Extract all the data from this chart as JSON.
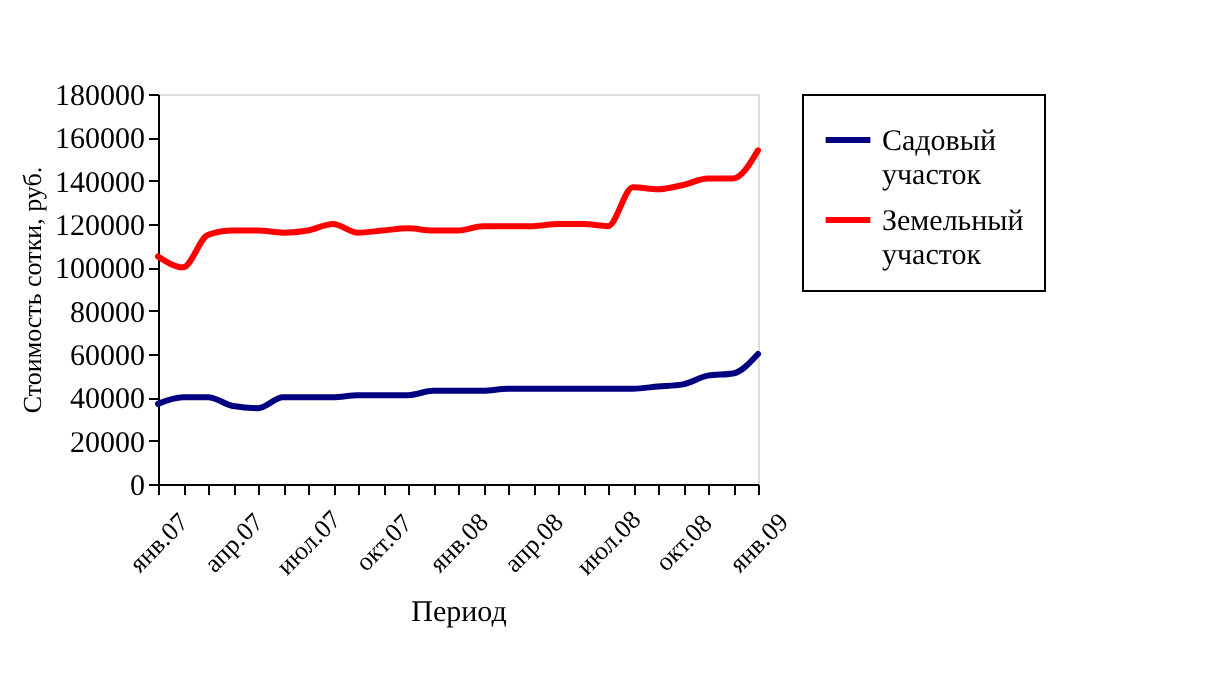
{
  "chart_data": {
    "type": "line",
    "xlabel": "Период",
    "ylabel": "Стоимость сотки, руб.",
    "categories": [
      "янв.07",
      null,
      null,
      "апр.07",
      null,
      null,
      "июл.07",
      null,
      null,
      "окт.07",
      null,
      null,
      "янв.08",
      null,
      null,
      "апр.08",
      null,
      null,
      "июл.08",
      null,
      null,
      "окт.08",
      null,
      null,
      "янв.09"
    ],
    "series": [
      {
        "name": "Садовый участок",
        "color": "#000080",
        "values": [
          37000,
          40000,
          40000,
          36000,
          35000,
          40000,
          40000,
          40000,
          41000,
          41000,
          41000,
          43000,
          43000,
          43000,
          44000,
          44000,
          44000,
          44000,
          44000,
          44000,
          45000,
          46000,
          50000,
          51000,
          60000
        ]
      },
      {
        "name": "Земельный участок",
        "color": "#ff0000",
        "values": [
          105000,
          100000,
          115000,
          117000,
          117000,
          116000,
          117000,
          120000,
          116000,
          117000,
          118000,
          117000,
          117000,
          119000,
          119000,
          119000,
          120000,
          120000,
          119000,
          137000,
          136000,
          138000,
          141000,
          141000,
          154000
        ]
      }
    ],
    "ylim": [
      0,
      180000
    ],
    "yticks": [
      0,
      20000,
      40000,
      60000,
      80000,
      100000,
      120000,
      140000,
      160000,
      180000
    ],
    "grid": false,
    "legend": "right",
    "marker": "none",
    "line_style": "solid"
  }
}
